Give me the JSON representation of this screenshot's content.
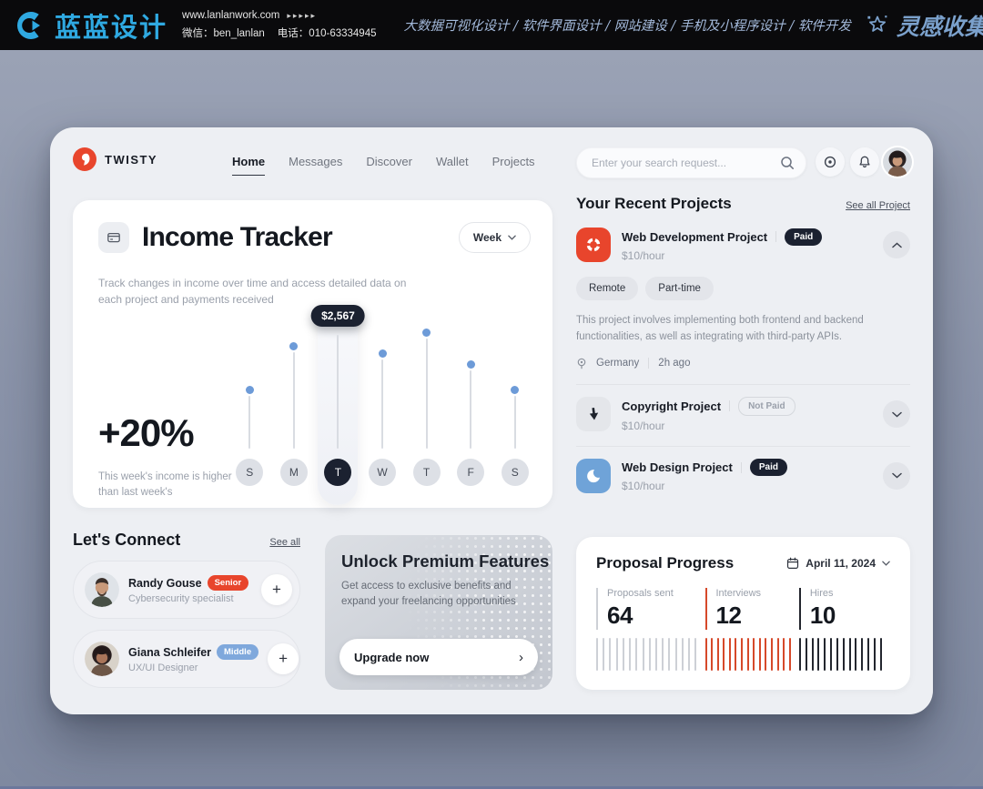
{
  "banner": {
    "brand": "蓝蓝设计",
    "website": "www.lanlanwork.com",
    "arrows": "▸▸▸▸▸",
    "wechat": "微信：ben_lanlan",
    "phone": "电话：010-63334945",
    "services": "大数据可视化设计 / 软件界面设计 / 网站建设 / 手机及小程序设计 / 软件开发",
    "collection": "灵感收集"
  },
  "app": {
    "brand": "TWISTY",
    "nav": [
      "Home",
      "Messages",
      "Discover",
      "Wallet",
      "Projects"
    ],
    "search_placeholder": "Enter your search request..."
  },
  "income": {
    "title": "Income Tracker",
    "subtitle": "Track changes in income over time and access detailed data on each project and payments received",
    "period": "Week"
  },
  "chart_data": [
    {
      "id": "income_week",
      "type": "lollipop",
      "title": "Income Tracker",
      "period": "Week",
      "categories": [
        "S",
        "M",
        "T",
        "W",
        "T",
        "F",
        "S"
      ],
      "values": [
        1190,
        2180,
        2567,
        2010,
        2490,
        1770,
        1190
      ],
      "ymax": 2567,
      "highlight_index": 2,
      "highlight_label": "$2,567",
      "change_label": "+20%",
      "change_note": "This week's income is higher than last week's",
      "dot_color": "#6d9bd8",
      "line_color": "#d9dce2",
      "highlight_color": "#1b2130",
      "legend": "none",
      "grid": false
    },
    {
      "id": "proposal_progress",
      "type": "tick-progress",
      "title": "Proposal Progress",
      "date": "April 11, 2024",
      "metrics": [
        {
          "label": "Proposals sent",
          "value": 64,
          "ticks": 16,
          "color": "#cdd0d6"
        },
        {
          "label": "Interviews",
          "value": 12,
          "ticks": 15,
          "color": "#d6492a"
        },
        {
          "label": "Hires",
          "value": 10,
          "ticks": 14,
          "color": "#23262e"
        }
      ],
      "column_widths_pct": [
        37,
        32,
        31
      ]
    }
  ],
  "projects": {
    "heading": "Your Recent Projects",
    "see_all": "See all Project",
    "items": [
      {
        "name": "Web Development Project",
        "status": "Paid",
        "rate": "$10/hour",
        "tags": [
          "Remote",
          "Part-time"
        ],
        "description": "This project involves implementing both frontend and backend functionalities, as well as integrating with third-party APIs.",
        "location": "Germany",
        "posted": "2h ago"
      },
      {
        "name": "Copyright Project",
        "status": "Not Paid",
        "rate": "$10/hour"
      },
      {
        "name": "Web Design Project",
        "status": "Paid",
        "rate": "$10/hour"
      }
    ]
  },
  "connect": {
    "heading": "Let's Connect",
    "see_all": "See all",
    "people": [
      {
        "name": "Randy Gouse",
        "level": "Senior",
        "role": "Cybersecurity specialist"
      },
      {
        "name": "Giana Schleifer",
        "level": "Middle",
        "role": "UX/UI Designer"
      }
    ]
  },
  "premium": {
    "title": "Unlock Premium Features",
    "text": "Get access to exclusive benefits and expand your freelancing opportunities",
    "button": "Upgrade now"
  },
  "colors": {
    "banner_cyan": "#2fa9e1",
    "accent_red": "#e8452c",
    "navy": "#1b2130",
    "chart_dot_blue": "#6d9bd8",
    "badge_blue": "#7fa8dc",
    "tick_red": "#d6492a",
    "page_bg": "#8b94aa",
    "dashboard_bg": "#edeff3"
  }
}
